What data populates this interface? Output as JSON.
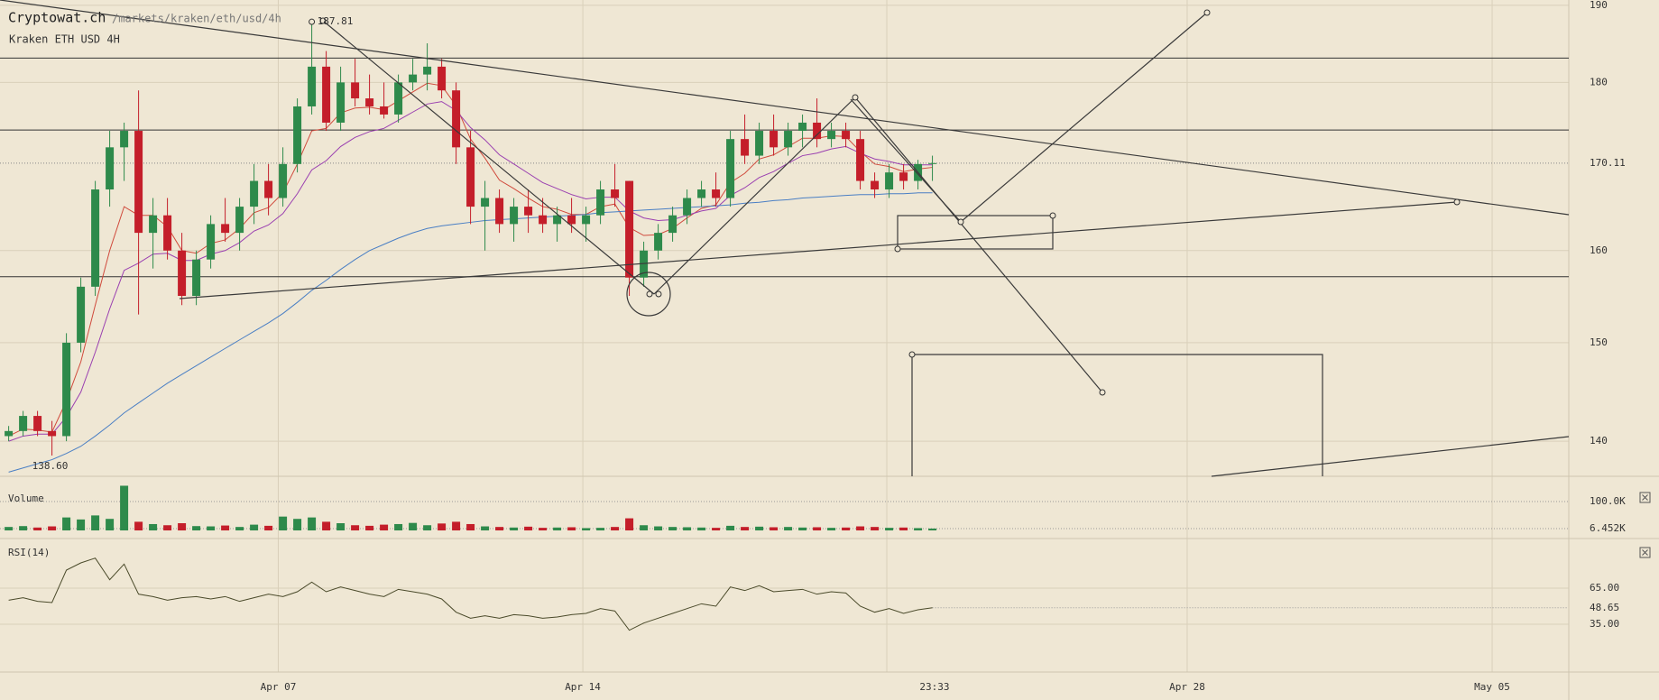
{
  "chart_data": {
    "type": "candlestick",
    "title": "Cryptowat.ch",
    "subtitle": "/markets/kraken/eth/usd/4h",
    "market_label": "Kraken ETH USD 4H",
    "log_scale": true,
    "grid": true,
    "up_color": "#2e8a4b",
    "down_color": "#c41e2a",
    "xlim": [
      -0.6,
      108.09
    ],
    "xticks": [
      {
        "value": 18.68,
        "label": "Apr 07"
      },
      {
        "value": 39.78,
        "label": "Apr 14"
      },
      {
        "value": 60.84,
        "label": null
      },
      {
        "value": 81.65,
        "label": "Apr 28"
      },
      {
        "value": 102.78,
        "label": "May 05"
      }
    ],
    "now_marker": {
      "value": 64.15,
      "label": "23:33"
    },
    "ylim": [
      136.6,
      190.7
    ],
    "yticks": [
      140,
      150,
      160,
      180,
      190
    ],
    "last_price": 170.11,
    "high_marker": 187.81,
    "low_marker": {
      "value": 138.6,
      "label": "138.60"
    },
    "levels": [
      183.1,
      174.1,
      157.1
    ],
    "open": [
      140.5,
      141,
      142.5,
      141,
      140.5,
      150,
      156,
      167,
      172,
      174,
      162,
      164,
      160,
      155,
      159,
      163,
      162,
      165,
      168,
      166,
      170,
      177,
      182,
      175,
      180,
      178,
      177,
      176,
      180,
      181,
      182,
      179,
      172,
      165,
      166,
      163,
      165,
      164,
      163,
      164,
      163,
      164,
      167,
      168,
      157,
      160,
      162,
      164,
      166,
      167,
      166,
      173,
      171,
      174,
      172,
      174,
      175,
      173,
      174,
      173,
      168,
      167,
      169,
      168,
      170
    ],
    "high": [
      141.5,
      143,
      143,
      142,
      151,
      157,
      168,
      174,
      175,
      179,
      166,
      166,
      162,
      160,
      164,
      166,
      166,
      170,
      170,
      172,
      178,
      187.81,
      184,
      182,
      183,
      181,
      180,
      181,
      183,
      185,
      183,
      180,
      174,
      168,
      167,
      166,
      167,
      166,
      165,
      166,
      165,
      168,
      170,
      168,
      161,
      163,
      165,
      167,
      168,
      169,
      174,
      176,
      175,
      176,
      175,
      176,
      178,
      175,
      175,
      174,
      169,
      170,
      170,
      170.5,
      171
    ],
    "low": [
      140,
      140.5,
      140.5,
      138.6,
      140,
      149,
      155,
      165,
      168,
      153,
      158,
      159,
      154,
      154,
      158,
      161,
      160,
      163,
      164,
      165,
      169,
      176,
      174,
      174,
      177,
      176,
      175.5,
      175,
      179,
      179,
      178,
      170,
      163,
      160,
      162,
      161,
      162,
      162,
      161,
      162,
      161,
      163,
      165,
      155,
      156,
      159,
      161,
      163,
      165,
      165,
      165,
      170,
      170,
      171,
      171,
      172,
      172,
      172,
      172,
      167,
      166,
      166,
      167,
      167,
      168
    ],
    "close": [
      141,
      142.5,
      141,
      140.5,
      150,
      156,
      167,
      172,
      174,
      162,
      164,
      160,
      155,
      159,
      163,
      162,
      165,
      168,
      166,
      170,
      177,
      182,
      175,
      180,
      178,
      177,
      176,
      180,
      181,
      182,
      179,
      172,
      165,
      166,
      163,
      165,
      164,
      163,
      164,
      163,
      164,
      167,
      166,
      157,
      160,
      162,
      164,
      166,
      167,
      166,
      173,
      171,
      174,
      172,
      174,
      175,
      173,
      174,
      173,
      168,
      167,
      169,
      168,
      170,
      170.11
    ],
    "ma_lines": [
      {
        "color": "#d04a3c",
        "values": [
          140.5,
          141.2,
          141.1,
          140.9,
          144,
          148,
          154,
          160,
          165,
          164,
          164,
          162.7,
          160,
          159.7,
          160.8,
          161.2,
          162.5,
          164.3,
          164.9,
          166.6,
          170,
          174,
          174.3,
          176.2,
          176.8,
          176.9,
          176.6,
          177.7,
          178.8,
          179.9,
          179.6,
          177.1,
          173,
          170.7,
          168.1,
          167.1,
          166,
          165,
          164.7,
          164.1,
          164.1,
          165,
          165.3,
          162.6,
          161.7,
          161.8,
          162.5,
          163.7,
          164.8,
          165.2,
          167.8,
          168.9,
          170.6,
          171.1,
          172.1,
          173.1,
          173.1,
          173.4,
          173.3,
          171.5,
          170,
          169.7,
          169.1,
          169.4,
          169.6
        ]
      },
      {
        "color": "#9a3fb0",
        "values": [
          140,
          140.5,
          140.7,
          140.7,
          142.4,
          144.9,
          149,
          153.6,
          157.8,
          158.6,
          159.6,
          159.7,
          158.9,
          158.9,
          159.6,
          160,
          160.9,
          162.2,
          162.9,
          164.2,
          166.5,
          169.3,
          170.4,
          172.1,
          173.2,
          173.9,
          174.3,
          175.3,
          176.3,
          177.3,
          177.6,
          176.5,
          174.4,
          172.9,
          171.1,
          170,
          168.9,
          167.8,
          167.1,
          166.4,
          165.9,
          166.1,
          166.1,
          164.5,
          163.7,
          163.4,
          163.5,
          164,
          164.5,
          164.8,
          166.3,
          167.2,
          168.4,
          169.1,
          170.1,
          171,
          171.3,
          171.8,
          172.1,
          171.3,
          170.6,
          170.3,
          169.9,
          169.9,
          169.9
        ]
      },
      {
        "color": "#4a7fc4",
        "values": [
          137,
          137.4,
          137.8,
          138.2,
          138.8,
          139.5,
          140.5,
          141.6,
          142.8,
          143.8,
          144.8,
          145.8,
          146.7,
          147.6,
          148.5,
          149.4,
          150.3,
          151.2,
          152.1,
          153.1,
          154.3,
          155.6,
          156.7,
          157.9,
          159,
          160,
          160.7,
          161.4,
          162,
          162.5,
          162.8,
          163,
          163.2,
          163.4,
          163.5,
          163.6,
          163.7,
          163.8,
          163.9,
          164,
          164.1,
          164.3,
          164.4,
          164.5,
          164.6,
          164.7,
          164.8,
          164.9,
          165,
          165.1,
          165.2,
          165.4,
          165.5,
          165.7,
          165.8,
          166,
          166.1,
          166.2,
          166.3,
          166.4,
          166.4,
          166.5,
          166.5,
          166.6,
          166.6
        ]
      }
    ],
    "volume_title": "Volume",
    "volume_ylim": [
      0,
      169000
    ],
    "volume_yticks": [
      {
        "value": 100000,
        "label": "100.0K"
      },
      {
        "value": 6452,
        "label": "6.452K"
      }
    ],
    "volume": [
      12000,
      15000,
      10000,
      14000,
      45000,
      38000,
      52000,
      40000,
      155000,
      30000,
      22000,
      18000,
      25000,
      15000,
      14000,
      17000,
      12000,
      20000,
      16000,
      48000,
      40000,
      45000,
      30000,
      25000,
      18000,
      16000,
      20000,
      22000,
      26000,
      18000,
      24000,
      30000,
      22000,
      14000,
      12000,
      10000,
      13000,
      9000,
      10000,
      11000,
      8000,
      9000,
      12000,
      42000,
      18000,
      14000,
      12000,
      11000,
      10000,
      9000,
      16000,
      12000,
      13000,
      11000,
      12000,
      10000,
      11000,
      9000,
      10000,
      14000,
      12000,
      9000,
      10000,
      8000,
      6452
    ],
    "rsi_title": "RSI(14)",
    "rsi_color": "#4a4a2a",
    "rsi_ylim": [
      -4.75,
      104
    ],
    "rsi_yticks": [
      {
        "value": 65,
        "label": "65.00"
      },
      48.65,
      {
        "value": 35,
        "label": "35.00"
      }
    ],
    "rsi": [
      55,
      57,
      54,
      53,
      80,
      86,
      90,
      72,
      85,
      60,
      58,
      55,
      57,
      58,
      56,
      58,
      54,
      57,
      60,
      58,
      62,
      70,
      62,
      66,
      63,
      60,
      58,
      64,
      62,
      60,
      56,
      45,
      40,
      42,
      40,
      43,
      42,
      40,
      41,
      43,
      44,
      48,
      46,
      30,
      36,
      40,
      44,
      48,
      52,
      50,
      66,
      63,
      67,
      62,
      63,
      64,
      60,
      62,
      61,
      50,
      45,
      48,
      44,
      47,
      48.65
    ]
  }
}
